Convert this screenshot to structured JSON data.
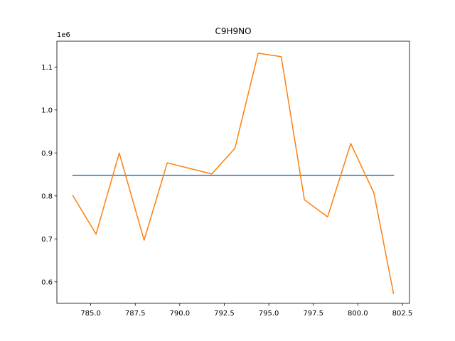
{
  "chart_data": {
    "type": "line",
    "title": "C9H9NO",
    "xlabel": "",
    "ylabel": "",
    "y_offset_label": "1e6",
    "xlim": [
      783.1,
      802.9
    ],
    "ylim": [
      550000,
      1160000
    ],
    "xticks": [
      785.0,
      787.5,
      790.0,
      792.5,
      795.0,
      797.5,
      800.0,
      802.5
    ],
    "xtick_labels": [
      "785.0",
      "787.5",
      "790.0",
      "792.5",
      "795.0",
      "797.5",
      "800.0",
      "802.5"
    ],
    "yticks": [
      600000,
      700000,
      800000,
      900000,
      1000000,
      1100000
    ],
    "ytick_labels": [
      "0.6",
      "0.7",
      "0.8",
      "0.9",
      "1.0",
      "1.1"
    ],
    "grid": false,
    "series": [
      {
        "color": "#1f77b4",
        "x": [
          784.0,
          802.0
        ],
        "y": [
          848000,
          848000
        ]
      },
      {
        "color": "#ff7f0e",
        "x": [
          784.0,
          785.3,
          786.6,
          788.0,
          789.3,
          791.8,
          793.1,
          794.4,
          795.7,
          797.0,
          798.3,
          799.6,
          800.9,
          802.0
        ],
        "y": [
          801000,
          711000,
          900000,
          697000,
          877000,
          851000,
          911000,
          1132000,
          1124000,
          791000,
          751000,
          922000,
          807000,
          573000
        ]
      }
    ]
  }
}
